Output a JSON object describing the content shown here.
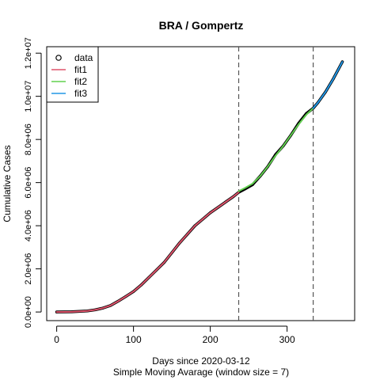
{
  "chart_data": {
    "type": "line",
    "title": "BRA / Gompertz",
    "xlabel": "Days since 2020-03-12",
    "xlabel2": "Simple Moving Avarage (window size = 7)",
    "ylabel": "Cumulative Cases",
    "xlim": [
      -13,
      388
    ],
    "ylim": [
      -400000,
      12300000
    ],
    "x_ticks": [
      0,
      100,
      200,
      300
    ],
    "x_tick_labels": [
      "0",
      "100",
      "200",
      "300"
    ],
    "y_ticks": [
      0,
      2000000,
      4000000,
      6000000,
      8000000,
      10000000,
      12000000
    ],
    "y_tick_labels": [
      "0.0e+00",
      "2.0e+06",
      "4.0e+06",
      "6.0e+06",
      "8.0e+06",
      "1.0e+07",
      "1.2e+07"
    ],
    "vlines": [
      237,
      334
    ],
    "legend": {
      "position": "top-left",
      "entries": [
        "data",
        "fit1",
        "fit2",
        "fit3"
      ]
    },
    "grid": false,
    "series": [
      {
        "name": "data",
        "kind": "points",
        "color": "#000000",
        "x": [
          0,
          20,
          40,
          50,
          60,
          70,
          80,
          90,
          100,
          110,
          120,
          130,
          140,
          150,
          160,
          170,
          180,
          190,
          200,
          210,
          220,
          230,
          237,
          245,
          255,
          265,
          275,
          285,
          295,
          305,
          315,
          325,
          334,
          340,
          350,
          360,
          372
        ],
        "y": [
          0,
          10000,
          50000,
          100000,
          180000,
          300000,
          500000,
          720000,
          950000,
          1250000,
          1600000,
          1950000,
          2300000,
          2750000,
          3200000,
          3600000,
          4000000,
          4300000,
          4600000,
          4850000,
          5100000,
          5350000,
          5550000,
          5700000,
          5900000,
          6300000,
          6750000,
          7300000,
          7700000,
          8200000,
          8750000,
          9200000,
          9450000,
          9700000,
          10200000,
          10800000,
          11600000
        ]
      },
      {
        "name": "fit1",
        "kind": "line",
        "color": "#DF536B",
        "x": [
          0,
          20,
          40,
          50,
          60,
          70,
          80,
          90,
          100,
          110,
          120,
          130,
          140,
          150,
          160,
          170,
          180,
          190,
          200,
          210,
          220,
          230,
          237
        ],
        "y": [
          0,
          10000,
          50000,
          100000,
          180000,
          300000,
          500000,
          720000,
          950000,
          1250000,
          1600000,
          1950000,
          2300000,
          2750000,
          3200000,
          3600000,
          4000000,
          4300000,
          4600000,
          4850000,
          5100000,
          5350000,
          5550000
        ]
      },
      {
        "name": "fit2",
        "kind": "line",
        "color": "#61D04F",
        "x": [
          237,
          245,
          255,
          265,
          275,
          285,
          295,
          305,
          315,
          325,
          334
        ],
        "y": [
          5600000,
          5750000,
          5950000,
          6300000,
          6750000,
          7250000,
          7700000,
          8200000,
          8700000,
          9150000,
          9450000
        ]
      },
      {
        "name": "fit3",
        "kind": "line",
        "color": "#2297E6",
        "x": [
          334,
          340,
          350,
          360,
          372
        ],
        "y": [
          9450000,
          9700000,
          10200000,
          10800000,
          11600000
        ]
      }
    ]
  }
}
